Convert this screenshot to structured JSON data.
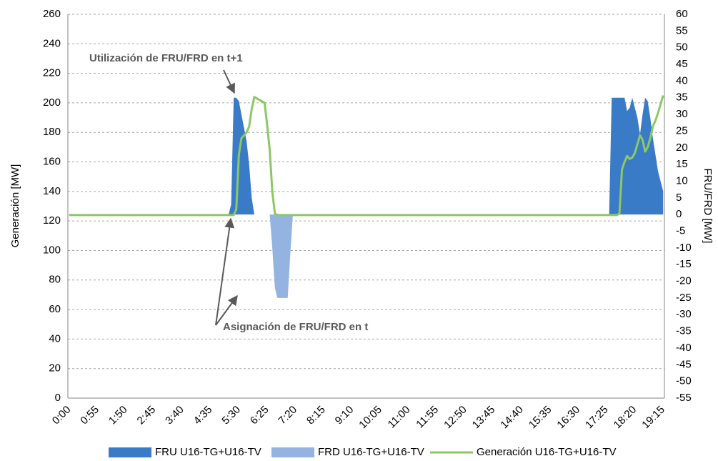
{
  "chart_data": {
    "type": "line-area",
    "y_label": "Generación [MW]",
    "y2_label": "FRU/FRD  [MW]",
    "annotations": [
      "Utilización de FRU/FRD en t+1",
      "Asignación de FRU/FRD en t"
    ],
    "legend": "bottom",
    "grid": true,
    "ylim": [
      0,
      260
    ],
    "yticks": [
      0,
      20,
      40,
      60,
      80,
      100,
      120,
      140,
      160,
      180,
      200,
      220,
      240,
      260
    ],
    "y2lim": [
      -55,
      60
    ],
    "y2ticks": [
      -55,
      -50,
      -45,
      -40,
      -35,
      -30,
      -25,
      -20,
      -15,
      -10,
      -5,
      0,
      5,
      10,
      15,
      20,
      25,
      30,
      35,
      40,
      45,
      50,
      55,
      60
    ],
    "categories": [
      "0:00",
      null,
      null,
      null,
      null,
      null,
      null,
      null,
      null,
      null,
      null,
      "0:55",
      null,
      null,
      null,
      null,
      null,
      null,
      null,
      null,
      null,
      null,
      "1:50",
      null,
      null,
      null,
      null,
      null,
      null,
      null,
      null,
      null,
      null,
      "2:45",
      null,
      null,
      null,
      null,
      null,
      null,
      null,
      null,
      null,
      null,
      "3:40",
      null,
      null,
      null,
      null,
      null,
      null,
      null,
      null,
      null,
      null,
      "4:35",
      null,
      null,
      null,
      null,
      null,
      null,
      null,
      null,
      null,
      null,
      "5:30",
      null,
      null,
      null,
      null,
      null,
      null,
      null,
      null,
      null,
      null,
      "6:25",
      null,
      null,
      null,
      null,
      null,
      null,
      null,
      null,
      null,
      null,
      "7:20",
      null,
      null,
      null,
      null,
      null,
      null,
      null,
      null,
      null,
      null,
      "8:15",
      null,
      null,
      null,
      null,
      null,
      null,
      null,
      null,
      null,
      null,
      "9:10",
      null,
      null,
      null,
      null,
      null,
      null,
      null,
      null,
      null,
      null,
      "10:05",
      null,
      null,
      null,
      null,
      null,
      null,
      null,
      null,
      null,
      null,
      "11:00",
      null,
      null,
      null,
      null,
      null,
      null,
      null,
      null,
      null,
      null,
      "11:55",
      null,
      null,
      null,
      null,
      null,
      null,
      null,
      null,
      null,
      null,
      "12:50",
      null,
      null,
      null,
      null,
      null,
      null,
      null,
      null,
      null,
      null,
      "13:45",
      null,
      null,
      null,
      null,
      null,
      null,
      null,
      null,
      null,
      null,
      "14:40",
      null,
      null,
      null,
      null,
      null,
      null,
      null,
      null,
      null,
      null,
      "15:35",
      null,
      null,
      null,
      null,
      null,
      null,
      null,
      null,
      null,
      null,
      "16:30",
      null,
      null,
      null,
      null,
      null,
      null,
      null,
      null,
      null,
      null,
      "17:25",
      null,
      null,
      null,
      null,
      null,
      null,
      null,
      null,
      null,
      null,
      "18:20",
      null,
      null,
      null,
      null,
      null,
      null,
      null,
      null,
      null,
      null,
      "19:15"
    ],
    "series": [
      {
        "name": "FRU U16-TG+U16-TV",
        "kind": "area",
        "axis": "y2",
        "color": "#3a7bc8",
        "values": [
          0,
          0,
          0,
          0,
          0,
          0,
          0,
          0,
          0,
          0,
          0,
          0,
          0,
          0,
          0,
          0,
          0,
          0,
          0,
          0,
          0,
          0,
          0,
          0,
          0,
          0,
          0,
          0,
          0,
          0,
          0,
          0,
          0,
          0,
          0,
          0,
          0,
          0,
          0,
          0,
          0,
          0,
          0,
          0,
          0,
          0,
          0,
          0,
          0,
          0,
          0,
          0,
          0,
          0,
          0,
          0,
          0,
          0,
          0,
          0,
          0,
          0,
          0,
          3,
          35,
          35,
          34,
          30,
          26,
          22,
          15,
          5,
          0,
          0,
          0,
          0,
          0,
          0,
          0,
          0,
          0,
          0,
          0,
          0,
          0,
          0,
          0,
          0,
          0,
          0,
          0,
          0,
          0,
          0,
          0,
          0,
          0,
          0,
          0,
          0,
          0,
          0,
          0,
          0,
          0,
          0,
          0,
          0,
          0,
          0,
          0,
          0,
          0,
          0,
          0,
          0,
          0,
          0,
          0,
          0,
          0,
          0,
          0,
          0,
          0,
          0,
          0,
          0,
          0,
          0,
          0,
          0,
          0,
          0,
          0,
          0,
          0,
          0,
          0,
          0,
          0,
          0,
          0,
          0,
          0,
          0,
          0,
          0,
          0,
          0,
          0,
          0,
          0,
          0,
          0,
          0,
          0,
          0,
          0,
          0,
          0,
          0,
          0,
          0,
          0,
          0,
          0,
          0,
          0,
          0,
          0,
          0,
          0,
          0,
          0,
          0,
          0,
          0,
          0,
          0,
          0,
          0,
          0,
          0,
          0,
          0,
          0,
          0,
          0,
          0,
          0,
          0,
          0,
          0,
          0,
          0,
          0,
          0,
          0,
          0,
          0,
          0,
          0,
          0,
          0,
          0,
          0,
          0,
          0,
          0,
          0,
          35,
          35,
          35,
          35,
          35,
          35,
          31,
          32,
          35,
          32,
          29,
          24,
          30,
          35,
          34,
          29,
          23,
          18,
          13,
          10,
          7
        ]
      },
      {
        "name": "FRD U16-TG+U16-TV",
        "kind": "area",
        "axis": "y2",
        "color": "#95b3e0",
        "values": [
          0,
          0,
          0,
          0,
          0,
          0,
          0,
          0,
          0,
          0,
          0,
          0,
          0,
          0,
          0,
          0,
          0,
          0,
          0,
          0,
          0,
          0,
          0,
          0,
          0,
          0,
          0,
          0,
          0,
          0,
          0,
          0,
          0,
          0,
          0,
          0,
          0,
          0,
          0,
          0,
          0,
          0,
          0,
          0,
          0,
          0,
          0,
          0,
          0,
          0,
          0,
          0,
          0,
          0,
          0,
          0,
          0,
          0,
          0,
          0,
          0,
          0,
          0,
          0,
          0,
          0,
          0,
          0,
          0,
          0,
          0,
          0,
          0,
          0,
          0,
          0,
          0,
          0,
          0,
          -10,
          -22,
          -25,
          -25,
          -25,
          -25,
          -25,
          -12,
          0,
          0,
          0,
          0,
          0,
          0,
          0,
          0,
          0,
          0,
          0,
          0,
          0,
          0,
          0,
          0,
          0,
          0,
          0,
          0,
          0,
          0,
          0,
          0,
          0,
          0,
          0,
          0,
          0,
          0,
          0,
          0,
          0,
          0,
          0,
          0,
          0,
          0,
          0,
          0,
          0,
          0,
          0,
          0,
          0,
          0,
          0,
          0,
          0,
          0,
          0,
          0,
          0,
          0,
          0,
          0,
          0,
          0,
          0,
          0,
          0,
          0,
          0,
          0,
          0,
          0,
          0,
          0,
          0,
          0,
          0,
          0,
          0,
          0,
          0,
          0,
          0,
          0,
          0,
          0,
          0,
          0,
          0,
          0,
          0,
          0,
          0,
          0,
          0,
          0,
          0,
          0,
          0,
          0,
          0,
          0,
          0,
          0,
          0,
          0,
          0,
          0,
          0,
          0,
          0,
          0,
          0,
          0,
          0,
          0,
          0,
          0,
          0,
          0,
          0,
          0,
          0,
          0,
          0,
          0,
          0,
          0,
          0,
          0,
          0,
          0,
          0,
          0,
          0,
          0,
          0,
          0,
          0,
          0,
          0,
          0,
          0,
          0,
          0,
          0,
          0,
          0,
          0,
          0,
          0
        ]
      },
      {
        "name": "Generación U16-TG+U16-TV",
        "kind": "line",
        "axis": "y",
        "color": "#8cc864",
        "values": [
          124,
          124,
          124,
          124,
          124,
          124,
          124,
          124,
          124,
          124,
          124,
          124,
          124,
          124,
          124,
          124,
          124,
          124,
          124,
          124,
          124,
          124,
          124,
          124,
          124,
          124,
          124,
          124,
          124,
          124,
          124,
          124,
          124,
          124,
          124,
          124,
          124,
          124,
          124,
          124,
          124,
          124,
          124,
          124,
          124,
          124,
          124,
          124,
          124,
          124,
          124,
          124,
          124,
          124,
          124,
          124,
          124,
          124,
          124,
          124,
          124,
          124,
          124,
          124,
          124,
          128,
          165,
          176,
          178,
          180,
          184,
          196,
          204,
          203,
          202,
          201,
          200,
          185,
          168,
          140,
          125,
          124,
          124,
          124,
          124,
          124,
          124,
          124,
          124,
          124,
          124,
          124,
          124,
          124,
          124,
          124,
          124,
          124,
          124,
          124,
          124,
          124,
          124,
          124,
          124,
          124,
          124,
          124,
          124,
          124,
          124,
          124,
          124,
          124,
          124,
          124,
          124,
          124,
          124,
          124,
          124,
          124,
          124,
          124,
          124,
          124,
          124,
          124,
          124,
          124,
          124,
          124,
          124,
          124,
          124,
          124,
          124,
          124,
          124,
          124,
          124,
          124,
          124,
          124,
          124,
          124,
          124,
          124,
          124,
          124,
          124,
          124,
          124,
          124,
          124,
          124,
          124,
          124,
          124,
          124,
          124,
          124,
          124,
          124,
          124,
          124,
          124,
          124,
          124,
          124,
          124,
          124,
          124,
          124,
          124,
          124,
          124,
          124,
          124,
          124,
          124,
          124,
          124,
          124,
          124,
          124,
          124,
          124,
          124,
          124,
          124,
          124,
          124,
          124,
          124,
          124,
          124,
          124,
          124,
          124,
          124,
          124,
          124,
          124,
          124,
          124,
          124,
          124,
          124,
          124,
          124,
          124,
          124,
          124,
          125,
          155,
          160,
          164,
          162,
          163,
          166,
          172,
          178,
          175,
          167,
          170,
          176,
          184,
          188,
          193,
          199,
          205
        ]
      }
    ]
  }
}
